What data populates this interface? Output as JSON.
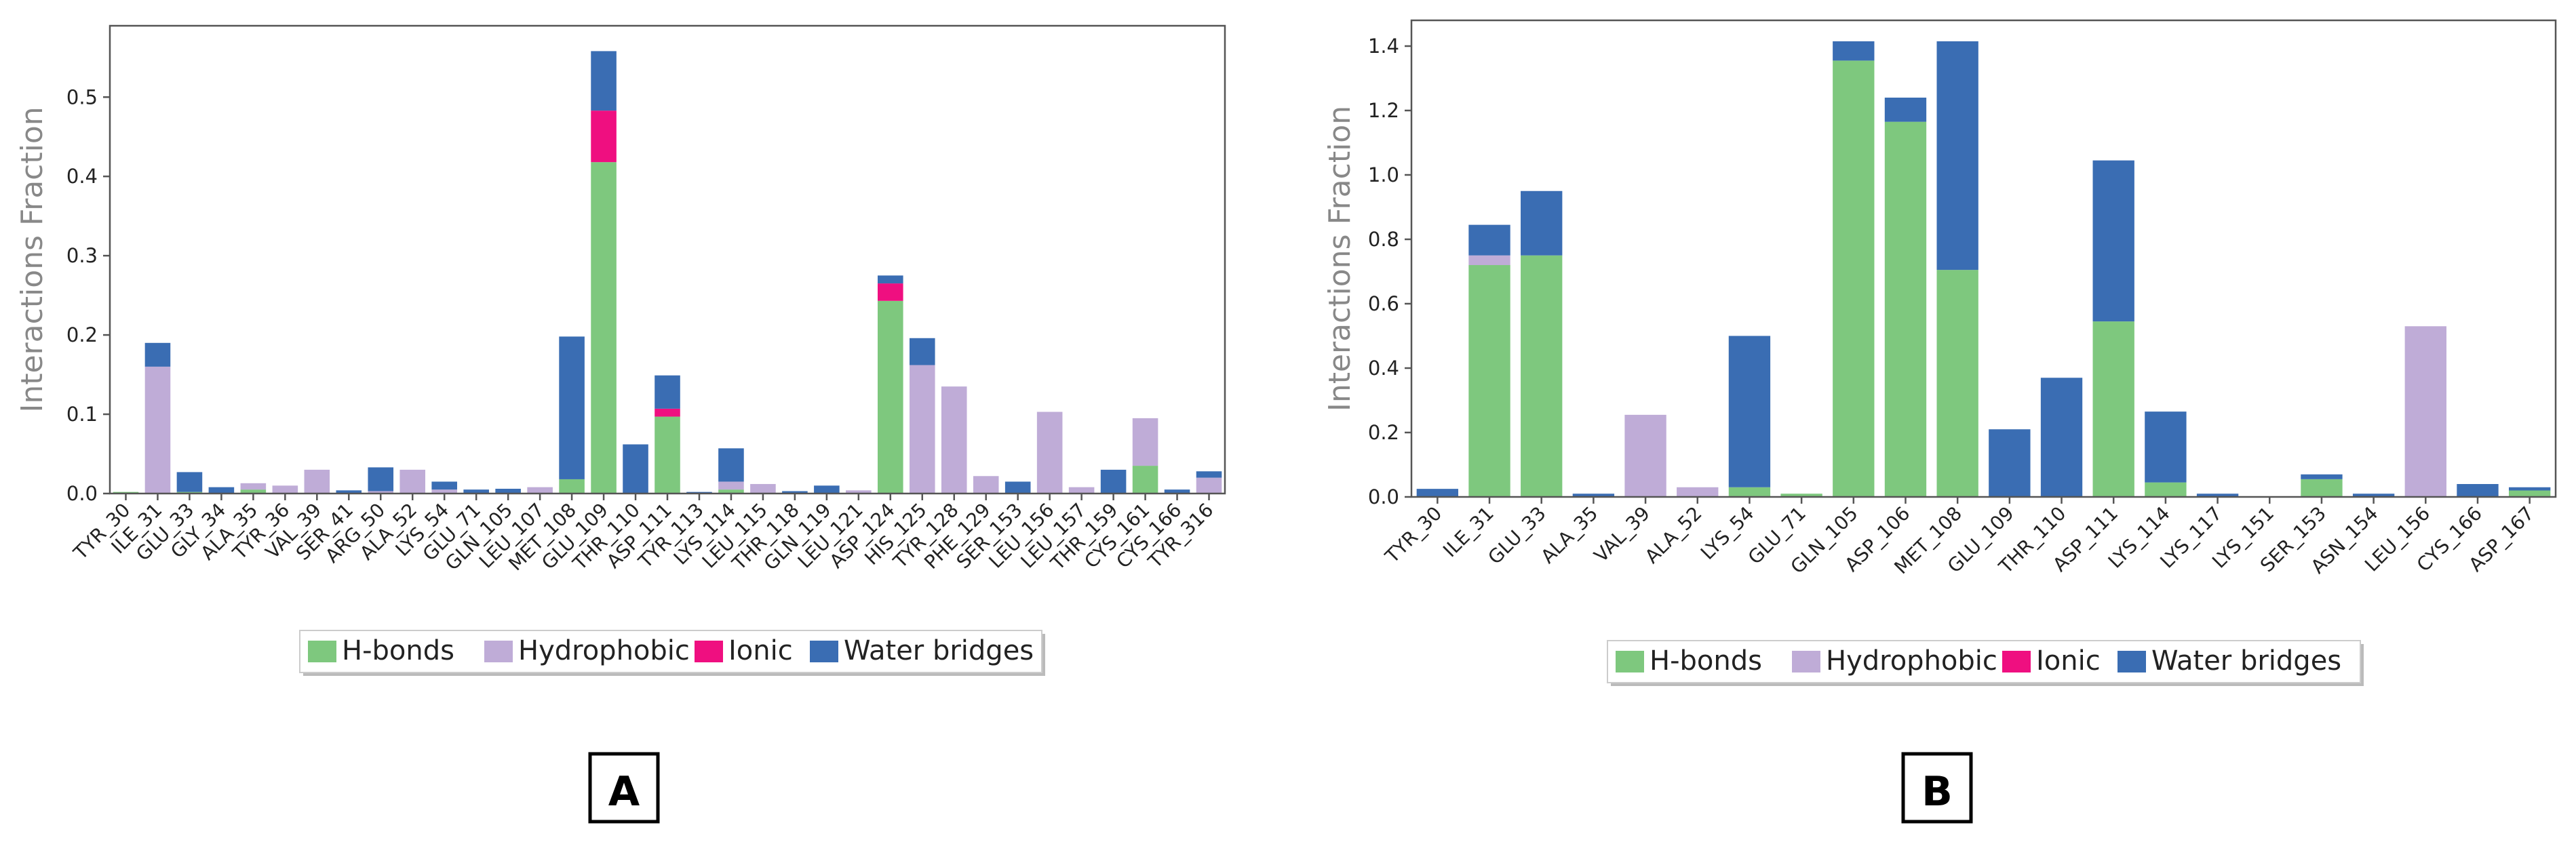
{
  "colors": {
    "hbonds": "#7ec87e",
    "hydrophobic": "#bfacd7",
    "ionic": "#ef0f80",
    "water": "#3a6db3",
    "axis": "#555555",
    "text": "#222222",
    "ylabel": "#888888"
  },
  "legend_labels": [
    "H-bonds",
    "Hydrophobic",
    "Ionic",
    "Water bridges"
  ],
  "chart_data": [
    {
      "type": "bar",
      "stacked": true,
      "panel": "A",
      "ylabel": "Interactions Fraction",
      "ylim": [
        0,
        0.59
      ],
      "yticks": [
        0.0,
        0.1,
        0.2,
        0.3,
        0.4,
        0.5
      ],
      "ytick_labels": [
        "0.0",
        "0.1",
        "0.2",
        "0.3",
        "0.4",
        "0.5"
      ],
      "legend": "bottom-center",
      "categories": [
        "TYR_30",
        "ILE_31",
        "GLU_33",
        "GLY_34",
        "ALA_35",
        "TYR_36",
        "VAL_39",
        "SER_41",
        "ARG_50",
        "ALA_52",
        "LYS_54",
        "GLU_71",
        "GLN_105",
        "LEU_107",
        "MET_108",
        "GLU_109",
        "THR_110",
        "ASP_111",
        "TYR_113",
        "LYS_114",
        "LEU_115",
        "THR_118",
        "GLN_119",
        "LEU_121",
        "ASP_124",
        "HIS_125",
        "TYR_128",
        "PHE_129",
        "SER_153",
        "LEU_156",
        "LEU_157",
        "THR_159",
        "CYS_161",
        "CYS_166",
        "TYR_316"
      ],
      "series": [
        {
          "name": "H-bonds",
          "values": [
            0.002,
            0,
            0.002,
            0,
            0.005,
            0,
            0,
            0,
            0,
            0,
            0,
            0,
            0,
            0,
            0.018,
            0.418,
            0,
            0.097,
            0,
            0.005,
            0,
            0,
            0,
            0,
            0.243,
            0,
            0,
            0,
            0,
            0,
            0,
            0,
            0.035,
            0,
            0
          ]
        },
        {
          "name": "Hydrophobic",
          "values": [
            0,
            0.16,
            0,
            0,
            0.008,
            0.01,
            0.03,
            0,
            0.003,
            0.03,
            0.005,
            0,
            0,
            0.008,
            0,
            0,
            0,
            0,
            0,
            0.01,
            0.012,
            0,
            0,
            0.004,
            0,
            0.162,
            0.135,
            0.022,
            0,
            0.103,
            0.008,
            0,
            0.06,
            0,
            0.02
          ]
        },
        {
          "name": "Ionic",
          "values": [
            0,
            0,
            0,
            0,
            0,
            0,
            0,
            0,
            0,
            0,
            0,
            0,
            0,
            0,
            0,
            0.065,
            0,
            0.01,
            0,
            0,
            0,
            0,
            0,
            0,
            0.022,
            0,
            0,
            0,
            0,
            0,
            0,
            0,
            0,
            0,
            0
          ]
        },
        {
          "name": "Water bridges",
          "values": [
            0,
            0.03,
            0.025,
            0.008,
            0,
            0,
            0,
            0.004,
            0.03,
            0,
            0.01,
            0.005,
            0.006,
            0,
            0.18,
            0.075,
            0.062,
            0.042,
            0.002,
            0.042,
            0,
            0.003,
            0.01,
            0,
            0.01,
            0.034,
            0,
            0,
            0.015,
            0,
            0,
            0.03,
            0,
            0.005,
            0.008
          ]
        }
      ]
    },
    {
      "type": "bar",
      "stacked": true,
      "panel": "B",
      "ylabel": "Interactions Fraction",
      "ylim": [
        0,
        1.48
      ],
      "yticks": [
        0.0,
        0.2,
        0.4,
        0.6,
        0.8,
        1.0,
        1.2,
        1.4
      ],
      "ytick_labels": [
        "0.0",
        "0.2",
        "0.4",
        "0.6",
        "0.8",
        "1.0",
        "1.2",
        "1.4"
      ],
      "legend": "bottom-center",
      "categories": [
        "TYR_30",
        "ILE_31",
        "GLU_33",
        "ALA_35",
        "VAL_39",
        "ALA_52",
        "LYS_54",
        "GLU_71",
        "GLN_105",
        "ASP_106",
        "MET_108",
        "GLU_109",
        "THR_110",
        "ASP_111",
        "LYS_114",
        "LYS_117",
        "LYS_151",
        "SER_153",
        "ASN_154",
        "LEU_156",
        "CYS_166",
        "ASP_167"
      ],
      "series": [
        {
          "name": "H-bonds",
          "values": [
            0,
            0.72,
            0.75,
            0,
            0,
            0,
            0.03,
            0.01,
            1.355,
            1.165,
            0.705,
            0,
            0,
            0.545,
            0.045,
            0,
            0,
            0.055,
            0,
            0,
            0,
            0.02
          ]
        },
        {
          "name": "Hydrophobic",
          "values": [
            0,
            0.03,
            0,
            0,
            0.255,
            0.03,
            0,
            0,
            0,
            0,
            0,
            0,
            0,
            0,
            0,
            0,
            0,
            0,
            0,
            0.53,
            0,
            0
          ]
        },
        {
          "name": "Ionic",
          "values": [
            0,
            0,
            0,
            0,
            0,
            0,
            0,
            0,
            0,
            0,
            0,
            0,
            0,
            0,
            0,
            0,
            0,
            0,
            0,
            0,
            0,
            0
          ]
        },
        {
          "name": "Water bridges",
          "values": [
            0.025,
            0.095,
            0.2,
            0.01,
            0,
            0,
            0.47,
            0,
            0.06,
            0.075,
            0.71,
            0.21,
            0.37,
            0.5,
            0.22,
            0.01,
            0,
            0.015,
            0.01,
            0,
            0.04,
            0.01
          ]
        }
      ]
    }
  ]
}
